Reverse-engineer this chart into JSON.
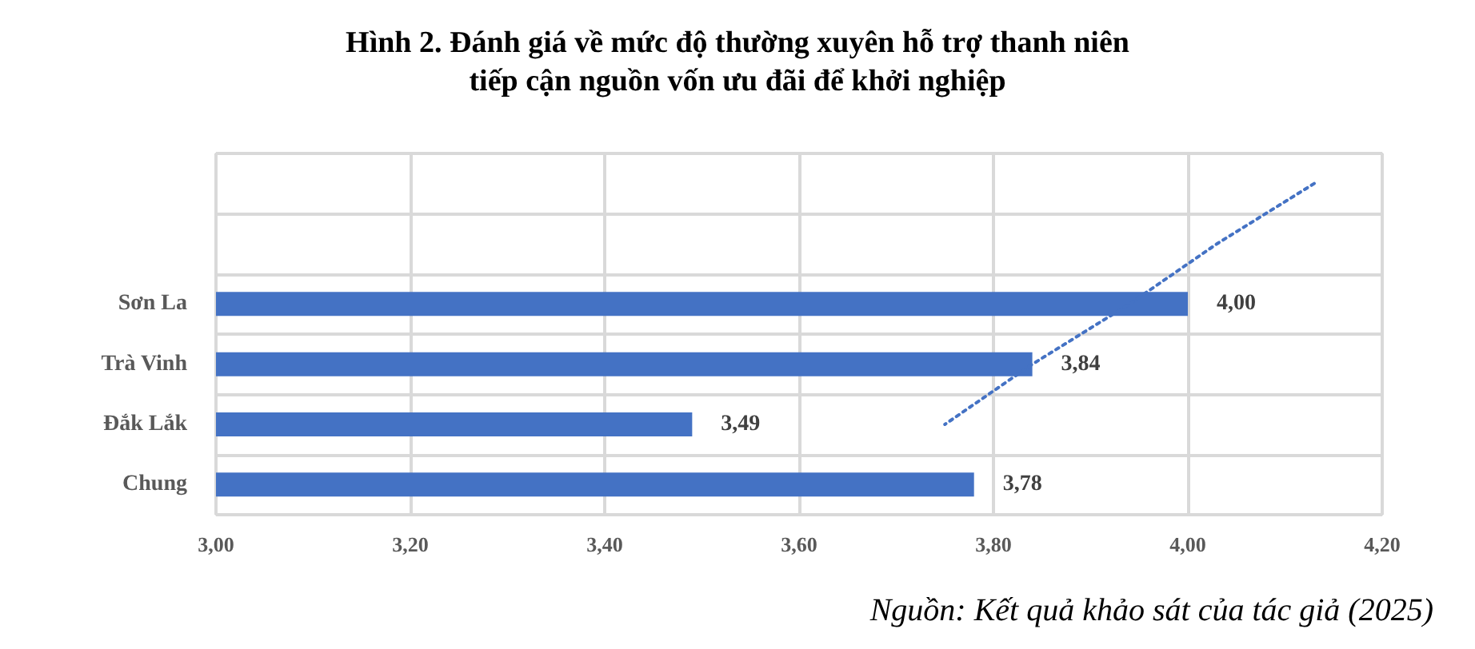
{
  "chart_data": {
    "type": "bar",
    "orientation": "horizontal",
    "title": "Hình 2. Đánh giá về mức độ thường xuyên hỗ trợ thanh niên\ntiếp cận nguồn vốn ưu đãi để khởi nghiệp",
    "categories": [
      null,
      null,
      "Sơn La",
      "Trà Vinh",
      "Đắk Lắk",
      "Chung"
    ],
    "series": [
      {
        "color": "#4472c4",
        "values": [
          null,
          null,
          4.0,
          3.84,
          3.49,
          3.78
        ],
        "value_labels": [
          null,
          null,
          "4,00",
          "3,84",
          "3,49",
          "3,78"
        ]
      },
      {
        "type": "line",
        "color": "#4472c4",
        "line_style": "dotted",
        "marker": "none",
        "values": [
          4.13,
          4.03,
          3.94,
          3.84,
          3.75,
          null
        ]
      }
    ],
    "xlim": [
      3.0,
      4.2
    ],
    "xticks": [
      {
        "value": 3.0,
        "label": "3,00"
      },
      {
        "value": 3.2,
        "label": "3,20"
      },
      {
        "value": 3.4,
        "label": "3,40"
      },
      {
        "value": 3.6,
        "label": "3,60"
      },
      {
        "value": 3.8,
        "label": "3,80"
      },
      {
        "value": 4.0,
        "label": "4,00"
      },
      {
        "value": 4.2,
        "label": "4,20"
      }
    ],
    "grid": true,
    "annotations": [
      "Nguồn: Kết quả khảo sát của tác giả (2025)"
    ]
  }
}
